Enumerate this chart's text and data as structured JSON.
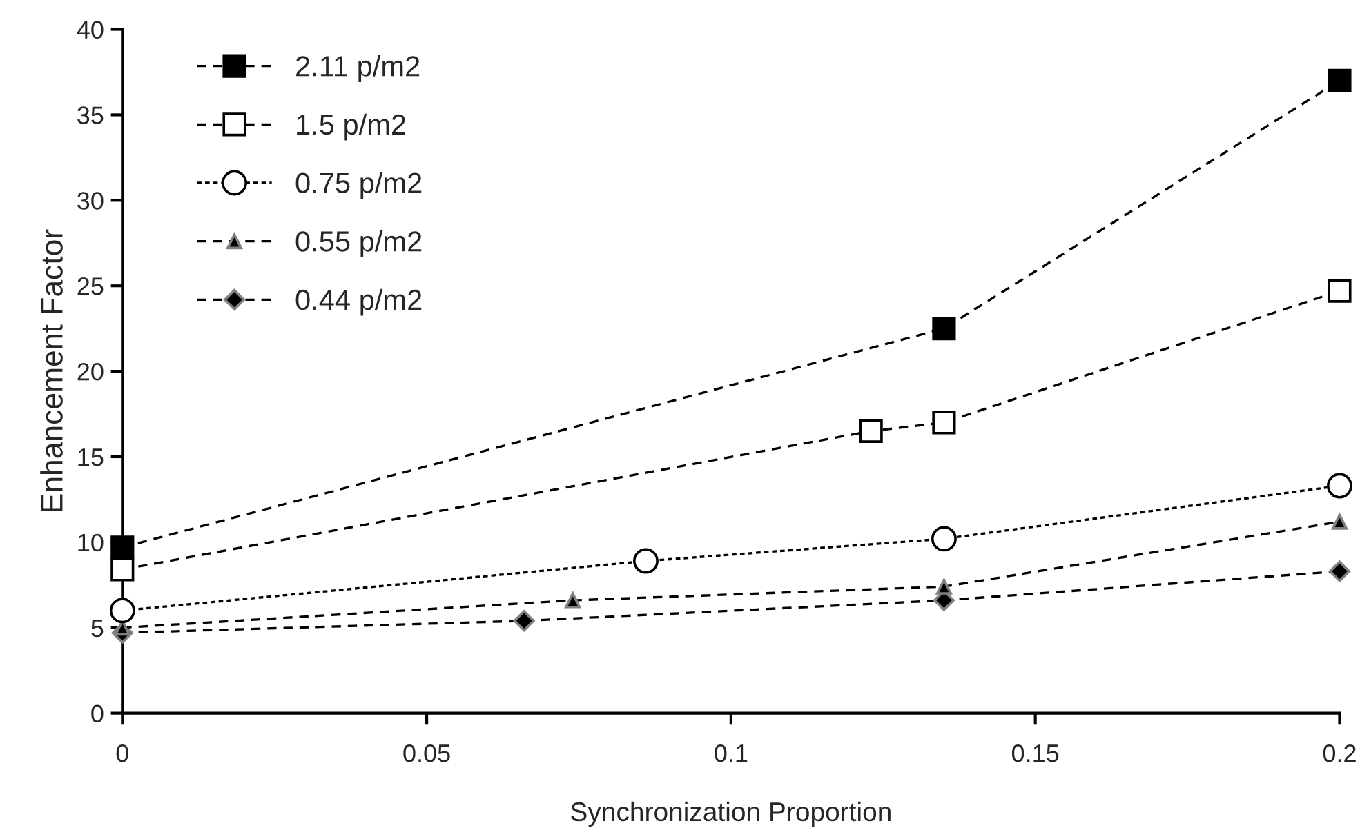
{
  "chart_data": {
    "type": "line",
    "xlabel": "Synchronization Proportion",
    "ylabel": "Enhancement Factor",
    "xlim": [
      0,
      0.2
    ],
    "xticks": [
      0,
      0.05,
      0.1,
      0.15,
      0.2
    ],
    "ylim": [
      0,
      40
    ],
    "yticks": [
      0,
      5,
      10,
      15,
      20,
      25,
      30,
      35,
      40
    ],
    "grid": false,
    "legend": "top left",
    "series": [
      {
        "name": "2.11 p/m2",
        "color": "#000000",
        "marker": "square",
        "line_style": "dashed",
        "x": [
          0,
          0.135,
          0.2
        ],
        "values": [
          9.7,
          22.5,
          37.0
        ]
      },
      {
        "name": "1.5 p/m2",
        "color": "#000000",
        "marker": "square",
        "line_style": "dashed",
        "x": [
          0,
          0.123,
          0.135,
          0.2
        ],
        "values": [
          8.4,
          16.5,
          17.0,
          24.7
        ]
      },
      {
        "name": "0.75 p/m2",
        "color": "#000000",
        "marker": "circle",
        "line_style": "dotted",
        "x": [
          0,
          0.086,
          0.135,
          0.2
        ],
        "values": [
          6.0,
          8.9,
          10.2,
          13.3
        ]
      },
      {
        "name": "0.55 p/m2",
        "color": "#000000",
        "marker": "triangle",
        "line_style": "dashed",
        "x": [
          0,
          0.074,
          0.135,
          0.2
        ],
        "values": [
          5.0,
          6.6,
          7.4,
          11.2
        ]
      },
      {
        "name": "0.44 p/m2",
        "color": "#000000",
        "marker": "diamond",
        "line_style": "dashed",
        "x": [
          0,
          0.066,
          0.135,
          0.2
        ],
        "values": [
          4.7,
          5.4,
          6.6,
          8.3
        ]
      }
    ]
  }
}
